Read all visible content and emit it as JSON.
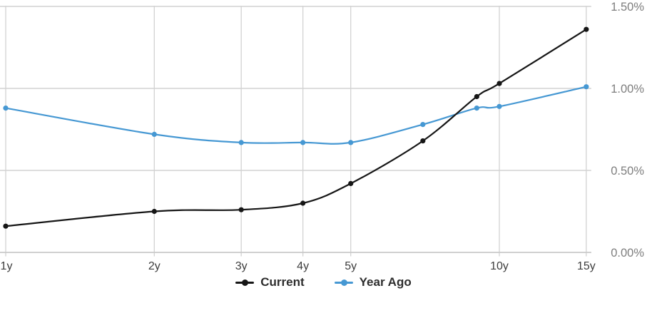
{
  "chart_data": {
    "type": "line",
    "title": "",
    "x_scale": "log",
    "x_unit": "years to maturity",
    "categories": [
      "1y",
      "2y",
      "3y",
      "4y",
      "5y",
      "7y",
      "9y",
      "10y",
      "15y"
    ],
    "x": [
      1,
      2,
      3,
      4,
      5,
      7,
      9,
      10,
      15
    ],
    "x_axis_tick_labels": [
      "1y",
      "2y",
      "3y",
      "4y",
      "5y",
      "10y",
      "15y"
    ],
    "x_axis_tick_values": [
      1,
      2,
      3,
      4,
      5,
      10,
      15
    ],
    "y_axis_tick_labels": [
      "0.00%",
      "0.50%",
      "1.00%",
      "1.50%"
    ],
    "y_axis_tick_values": [
      0,
      0.5,
      1.0,
      1.5
    ],
    "y_axis_side": "right",
    "ylim": [
      0,
      1.5
    ],
    "xlabel": "",
    "ylabel": "",
    "grid": true,
    "legend_position": "bottom",
    "series": [
      {
        "name": "Current",
        "color": "#161616",
        "marker": "circle",
        "values": [
          0.16,
          0.25,
          0.26,
          0.3,
          0.42,
          0.68,
          0.95,
          1.03,
          1.36
        ]
      },
      {
        "name": "Year Ago",
        "color": "#4698d3",
        "marker": "circle",
        "values": [
          0.88,
          0.72,
          0.67,
          0.67,
          0.67,
          0.78,
          0.88,
          0.89,
          1.01
        ]
      }
    ]
  },
  "colors": {
    "background": "#ffffff",
    "gridline": "#d2d2d2",
    "axis_line": "#c8c8c8",
    "y_tick_label": "#7e7e7e",
    "x_tick_label": "#3d3d3d",
    "legend_text": "#2d2d2d"
  }
}
